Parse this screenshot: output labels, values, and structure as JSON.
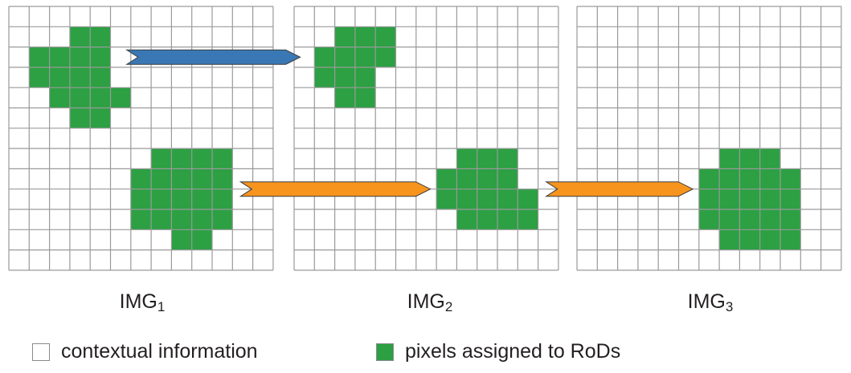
{
  "colors": {
    "grid_line": "#9a9a9a",
    "rod_fill": "#2ca043",
    "context_fill": "#ffffff",
    "arrow_blue": "#3a78b5",
    "arrow_orange": "#f7941d",
    "arrow_stroke": "#3c3c3c"
  },
  "panels": [
    {
      "name": "img1",
      "label_base": "IMG",
      "label_sub": "1",
      "rod_cells": [
        [
          1,
          3
        ],
        [
          1,
          4
        ],
        [
          2,
          1
        ],
        [
          2,
          2
        ],
        [
          2,
          3
        ],
        [
          2,
          4
        ],
        [
          3,
          1
        ],
        [
          3,
          2
        ],
        [
          3,
          3
        ],
        [
          3,
          4
        ],
        [
          4,
          2
        ],
        [
          4,
          3
        ],
        [
          4,
          4
        ],
        [
          4,
          5
        ],
        [
          5,
          3
        ],
        [
          5,
          4
        ],
        [
          7,
          7
        ],
        [
          7,
          8
        ],
        [
          7,
          9
        ],
        [
          7,
          10
        ],
        [
          8,
          6
        ],
        [
          8,
          7
        ],
        [
          8,
          8
        ],
        [
          8,
          9
        ],
        [
          8,
          10
        ],
        [
          9,
          6
        ],
        [
          9,
          7
        ],
        [
          9,
          8
        ],
        [
          9,
          9
        ],
        [
          9,
          10
        ],
        [
          10,
          6
        ],
        [
          10,
          7
        ],
        [
          10,
          8
        ],
        [
          10,
          9
        ],
        [
          10,
          10
        ],
        [
          11,
          8
        ],
        [
          11,
          9
        ]
      ]
    },
    {
      "name": "img2",
      "label_base": "IMG",
      "label_sub": "2",
      "rod_cells": [
        [
          1,
          2
        ],
        [
          1,
          3
        ],
        [
          1,
          4
        ],
        [
          2,
          1
        ],
        [
          2,
          2
        ],
        [
          2,
          3
        ],
        [
          2,
          4
        ],
        [
          3,
          1
        ],
        [
          3,
          2
        ],
        [
          3,
          3
        ],
        [
          4,
          2
        ],
        [
          4,
          3
        ],
        [
          7,
          8
        ],
        [
          7,
          9
        ],
        [
          7,
          10
        ],
        [
          8,
          7
        ],
        [
          8,
          8
        ],
        [
          8,
          9
        ],
        [
          8,
          10
        ],
        [
          9,
          7
        ],
        [
          9,
          8
        ],
        [
          9,
          9
        ],
        [
          9,
          10
        ],
        [
          9,
          11
        ],
        [
          10,
          8
        ],
        [
          10,
          9
        ],
        [
          10,
          10
        ],
        [
          10,
          11
        ]
      ]
    },
    {
      "name": "img3",
      "label_base": "IMG",
      "label_sub": "3",
      "rod_cells": [
        [
          7,
          7
        ],
        [
          7,
          8
        ],
        [
          7,
          9
        ],
        [
          8,
          6
        ],
        [
          8,
          7
        ],
        [
          8,
          8
        ],
        [
          8,
          9
        ],
        [
          8,
          10
        ],
        [
          9,
          6
        ],
        [
          9,
          7
        ],
        [
          9,
          8
        ],
        [
          9,
          9
        ],
        [
          9,
          10
        ],
        [
          10,
          6
        ],
        [
          10,
          7
        ],
        [
          10,
          8
        ],
        [
          10,
          9
        ],
        [
          10,
          10
        ],
        [
          11,
          7
        ],
        [
          11,
          8
        ],
        [
          11,
          9
        ],
        [
          11,
          10
        ]
      ]
    }
  ],
  "arrows": [
    {
      "name": "blue-arrow-img1-to-img2",
      "color": "#3a78b5",
      "from_panel": 0,
      "row": 2.5,
      "start_col": 5.8,
      "end_panel": 1,
      "end_col": 0.3
    },
    {
      "name": "orange-arrow-img1-to-img2",
      "color": "#f7941d",
      "from_panel": 0,
      "row": 9.0,
      "start_col": 11.4,
      "end_panel": 1,
      "end_col": 6.7
    },
    {
      "name": "orange-arrow-img2-to-img3",
      "color": "#f7941d",
      "from_panel": 1,
      "row": 9.0,
      "start_col": 12.4,
      "end_panel": 2,
      "end_col": 5.7
    }
  ],
  "legend": {
    "context_label": "contextual information",
    "rod_label": "pixels assigned to RoDs"
  }
}
